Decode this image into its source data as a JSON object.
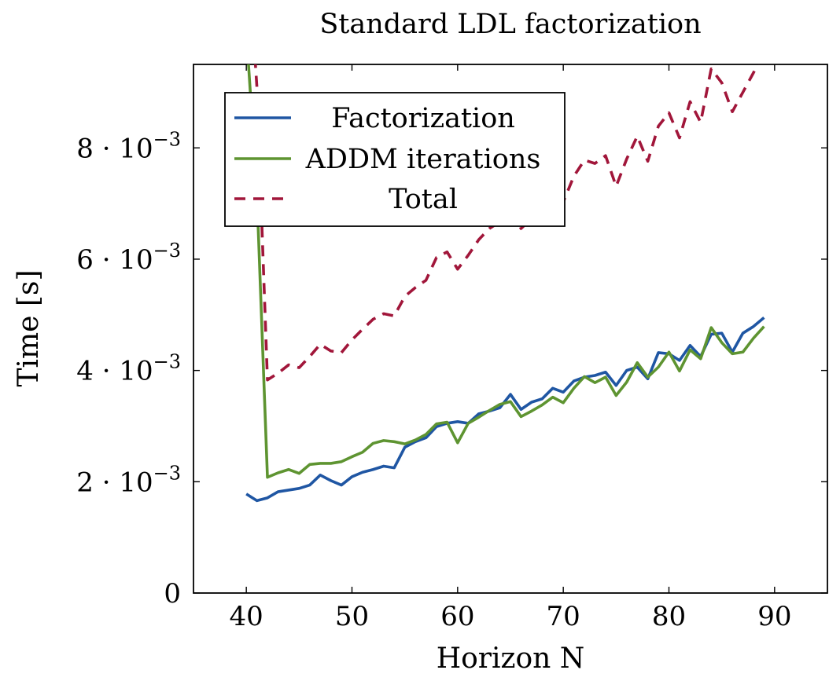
{
  "chart_data": {
    "type": "line",
    "title": "Standard LDL factorization",
    "xlabel": "Horizon N",
    "ylabel": "Time [s]",
    "xlim": [
      35,
      95
    ],
    "ylim": [
      0,
      0.0095
    ],
    "x_ticks": [
      {
        "value": 40,
        "label": "40"
      },
      {
        "value": 50,
        "label": "50"
      },
      {
        "value": 60,
        "label": "60"
      },
      {
        "value": 70,
        "label": "70"
      },
      {
        "value": 80,
        "label": "80"
      },
      {
        "value": 90,
        "label": "90"
      }
    ],
    "y_ticks": [
      {
        "value": 0,
        "label": "0"
      },
      {
        "value": 0.002,
        "mantissa": "2 · 10",
        "exponent": "−3"
      },
      {
        "value": 0.004,
        "mantissa": "4 · 10",
        "exponent": "−3"
      },
      {
        "value": 0.006,
        "mantissa": "6 · 10",
        "exponent": "−3"
      },
      {
        "value": 0.008,
        "mantissa": "8 · 10",
        "exponent": "−3"
      }
    ],
    "grid": false,
    "legend_position": "top-left",
    "series": [
      {
        "name": "Factorization",
        "color": "#1f56a3",
        "dash": "solid",
        "x": [
          40,
          41,
          42,
          43,
          44,
          45,
          46,
          47,
          48,
          49,
          50,
          51,
          52,
          53,
          54,
          55,
          56,
          57,
          58,
          59,
          60,
          61,
          62,
          63,
          64,
          65,
          66,
          67,
          68,
          69,
          70,
          71,
          72,
          73,
          74,
          75,
          76,
          77,
          78,
          79,
          80,
          81,
          82,
          83,
          84,
          85,
          86,
          87,
          88,
          89
        ],
        "y": [
          0.00178,
          0.00166,
          0.00171,
          0.00182,
          0.00185,
          0.00188,
          0.00194,
          0.00212,
          0.00202,
          0.00194,
          0.00209,
          0.00217,
          0.00222,
          0.00228,
          0.00225,
          0.00262,
          0.00272,
          0.00279,
          0.00299,
          0.00305,
          0.00308,
          0.00305,
          0.00322,
          0.00327,
          0.00333,
          0.00357,
          0.0033,
          0.00343,
          0.00349,
          0.00368,
          0.00361,
          0.00381,
          0.00388,
          0.00391,
          0.00397,
          0.00373,
          0.004,
          0.00406,
          0.00385,
          0.00432,
          0.0043,
          0.00418,
          0.00445,
          0.00425,
          0.00465,
          0.00467,
          0.00433,
          0.00467,
          0.00479,
          0.00495
        ]
      },
      {
        "name": "ADDM iterations",
        "color": "#5e9431",
        "dash": "solid",
        "x": [
          40,
          41,
          42,
          43,
          44,
          45,
          46,
          47,
          48,
          49,
          50,
          51,
          52,
          53,
          54,
          55,
          56,
          57,
          58,
          59,
          60,
          61,
          62,
          63,
          64,
          65,
          66,
          67,
          68,
          69,
          70,
          71,
          72,
          73,
          74,
          75,
          76,
          77,
          78,
          79,
          80,
          81,
          82,
          83,
          84,
          85,
          86,
          87,
          88,
          89
        ],
        "y": [
          0.0101,
          0.0072,
          0.00208,
          0.00216,
          0.00222,
          0.00215,
          0.00231,
          0.00233,
          0.00233,
          0.00236,
          0.00245,
          0.00253,
          0.00269,
          0.00274,
          0.00272,
          0.00268,
          0.00275,
          0.00285,
          0.00304,
          0.00307,
          0.0027,
          0.00305,
          0.00316,
          0.00328,
          0.00339,
          0.00344,
          0.00317,
          0.00327,
          0.00338,
          0.00352,
          0.00342,
          0.00368,
          0.00389,
          0.00378,
          0.00388,
          0.00355,
          0.00379,
          0.00414,
          0.00388,
          0.00406,
          0.00433,
          0.00399,
          0.00437,
          0.00421,
          0.00477,
          0.0045,
          0.0043,
          0.00433,
          0.00458,
          0.00479
        ]
      },
      {
        "name": "Total",
        "color": "#a1163a",
        "dash": "dashed",
        "x": [
          40,
          41,
          42,
          43,
          44,
          45,
          46,
          47,
          48,
          49,
          50,
          51,
          52,
          53,
          54,
          55,
          56,
          57,
          58,
          59,
          60,
          61,
          62,
          63,
          64,
          65,
          66,
          67,
          68,
          69,
          70,
          71,
          72,
          73,
          74,
          75,
          76,
          77,
          78,
          79,
          80,
          81,
          82,
          83,
          84,
          85,
          86,
          87,
          88,
          89
        ],
        "y": [
          0.012,
          0.0091,
          0.00383,
          0.00395,
          0.0041,
          0.00405,
          0.00425,
          0.00447,
          0.00435,
          0.00432,
          0.00455,
          0.00474,
          0.00492,
          0.00502,
          0.00498,
          0.00533,
          0.00549,
          0.00562,
          0.00603,
          0.00613,
          0.00582,
          0.00607,
          0.00635,
          0.00655,
          0.00667,
          0.00697,
          0.00655,
          0.00673,
          0.00691,
          0.00719,
          0.00703,
          0.00749,
          0.00778,
          0.00772,
          0.00786,
          0.00731,
          0.0078,
          0.00821,
          0.00776,
          0.00839,
          0.00863,
          0.00818,
          0.00883,
          0.00846,
          0.00942,
          0.00917,
          0.00865,
          0.009,
          0.00935,
          0.00973
        ]
      }
    ]
  }
}
